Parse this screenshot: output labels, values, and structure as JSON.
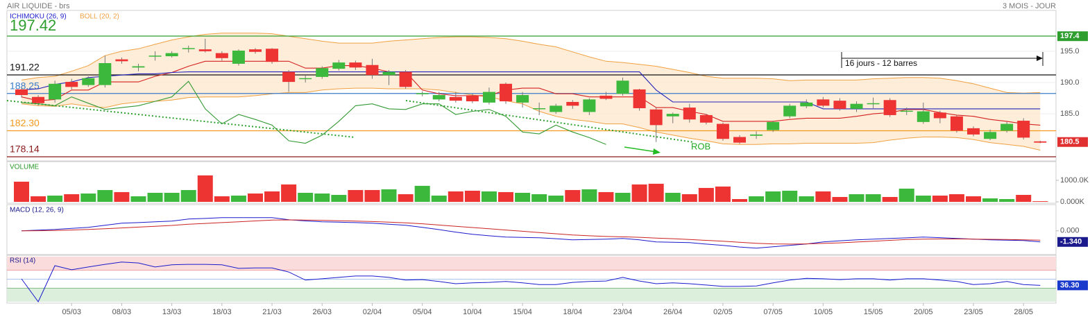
{
  "header": {
    "title": "AIR LIQUIDE - brs",
    "period": "3 MOIS - JOUR"
  },
  "annotations": {
    "rob": "ROB",
    "measure": "16 jours - 12 barres"
  },
  "chart_data": [
    {
      "type": "candlestick",
      "ylim": [
        177.7,
        201.3
      ],
      "yticks": [
        {
          "value": 185,
          "label": "185.0"
        },
        {
          "value": 190,
          "label": "190.0"
        },
        {
          "value": 195,
          "label": "195.0"
        }
      ],
      "grid": true,
      "up_color": "#3cb83c",
      "down_color": "#ee3333",
      "open": [
        188.9,
        187.7,
        187.3,
        190.1,
        189.6,
        189.6,
        193.7,
        192.4,
        194.2,
        194.2,
        195.4,
        195.3,
        194.7,
        193.0,
        195.3,
        195.4,
        191.7,
        190.6,
        190.9,
        192.2,
        193.2,
        192.8,
        191.2,
        191.7,
        188.2,
        187.3,
        187.7,
        187.9,
        186.8,
        189.8,
        186.8,
        185.8,
        185.3,
        186.9,
        185.3,
        187.9,
        188.2,
        188.9,
        185.7,
        184.6,
        186.0,
        184.8,
        183.4,
        181.3,
        181.5,
        182.4,
        184.6,
        186.2,
        187.3,
        187.1,
        185.8,
        186.6,
        187.2,
        185.4,
        183.7,
        185.2,
        184.6,
        182.7,
        181.0,
        182.3,
        183.9,
        180.6
      ],
      "high": [
        189.2,
        188.0,
        190.3,
        190.6,
        191.0,
        194.3,
        194.0,
        193.0,
        195.0,
        195.0,
        195.9,
        197.0,
        195.0,
        195.3,
        195.5,
        195.5,
        192.0,
        191.2,
        192.6,
        193.6,
        193.5,
        193.8,
        192.0,
        192.0,
        188.6,
        188.5,
        188.5,
        188.2,
        189.2,
        190.0,
        188.5,
        186.8,
        186.6,
        187.2,
        187.5,
        188.5,
        190.8,
        189.0,
        186.0,
        185.2,
        186.6,
        185.0,
        183.6,
        181.6,
        182.2,
        183.9,
        186.6,
        187.3,
        187.7,
        187.5,
        187.0,
        187.6,
        187.5,
        186.0,
        186.8,
        185.5,
        184.8,
        183.0,
        182.5,
        183.7,
        184.3,
        180.7
      ],
      "low": [
        187.6,
        186.3,
        186.8,
        188.9,
        189.3,
        189.2,
        193.0,
        191.8,
        193.5,
        194.0,
        194.8,
        194.8,
        193.5,
        192.7,
        194.6,
        193.0,
        188.5,
        190.0,
        190.6,
        191.9,
        192.0,
        190.6,
        189.6,
        189.0,
        187.8,
        187.0,
        186.8,
        186.7,
        186.5,
        186.6,
        186.0,
        184.8,
        185.0,
        185.8,
        184.8,
        187.2,
        187.9,
        185.5,
        180.5,
        183.5,
        183.6,
        183.3,
        180.7,
        180.2,
        181.0,
        182.1,
        184.3,
        185.9,
        186.0,
        185.5,
        185.3,
        185.9,
        184.5,
        184.8,
        183.4,
        183.5,
        182.0,
        181.4,
        180.8,
        182.0,
        180.9,
        180.3
      ],
      "close": [
        188.0,
        186.7,
        189.8,
        189.3,
        190.7,
        193.1,
        193.4,
        192.6,
        194.3,
        194.7,
        195.5,
        195.0,
        193.9,
        195.1,
        194.9,
        193.3,
        190.1,
        190.7,
        192.3,
        193.2,
        192.4,
        191.2,
        191.7,
        189.3,
        188.3,
        188.0,
        187.1,
        187.0,
        188.5,
        187.0,
        188.0,
        185.9,
        186.3,
        186.3,
        187.3,
        187.4,
        190.3,
        185.9,
        183.2,
        185.0,
        184.1,
        183.6,
        181.0,
        180.4,
        181.7,
        183.7,
        186.3,
        186.8,
        186.3,
        185.8,
        186.6,
        186.7,
        184.8,
        185.5,
        185.4,
        184.3,
        182.3,
        181.7,
        182.1,
        183.4,
        181.2,
        180.4
      ],
      "bollinger": {
        "name": "BOLL (20, 2)",
        "color": "#f0a040",
        "fill": "#fde8cc",
        "upper": [
          190.4,
          190.8,
          191.0,
          191.8,
          192.7,
          194.3,
          195.0,
          195.4,
          196.1,
          196.8,
          197.3,
          197.7,
          197.9,
          197.9,
          197.9,
          197.8,
          197.4,
          197.0,
          196.6,
          196.3,
          196.3,
          196.3,
          196.6,
          196.8,
          197.0,
          197.2,
          197.3,
          197.3,
          197.2,
          197.0,
          196.6,
          196.1,
          195.7,
          194.9,
          194.1,
          193.4,
          193.2,
          192.9,
          192.6,
          192.1,
          191.6,
          191.0,
          190.7,
          190.7,
          190.7,
          190.6,
          190.3,
          190.4,
          190.4,
          190.4,
          190.4,
          190.6,
          190.7,
          190.8,
          190.8,
          190.7,
          190.3,
          189.8,
          189.1,
          188.4,
          188.3,
          188.4
        ],
        "lower": [
          186.6,
          186.3,
          186.2,
          186.6,
          186.2,
          186.0,
          186.6,
          186.9,
          187.0,
          187.2,
          187.6,
          187.7,
          187.7,
          187.7,
          187.9,
          188.2,
          188.4,
          188.4,
          188.8,
          189.0,
          189.1,
          189.1,
          189.0,
          189.0,
          189.0,
          188.8,
          188.4,
          188.0,
          187.7,
          187.1,
          186.6,
          185.4,
          184.6,
          184.1,
          183.8,
          183.4,
          183.4,
          182.8,
          182.1,
          181.6,
          181.1,
          180.7,
          180.2,
          180.1,
          180.1,
          180.2,
          180.2,
          180.3,
          180.3,
          180.3,
          180.3,
          180.4,
          180.8,
          181.1,
          181.3,
          181.3,
          181.2,
          180.9,
          180.4,
          180.1,
          179.8,
          179.2
        ]
      },
      "ichimoku": {
        "name": "ICHIMOKU (26, 9)",
        "color": "#1c1ccc",
        "lines": [
          {
            "color": "#d42020",
            "values": [
              187.7,
              187.1,
              187.3,
              188.8,
              188.8,
              190.1,
              190.1,
              190.1,
              191.0,
              191.6,
              192.6,
              193.4,
              193.4,
              193.4,
              193.4,
              193.4,
              193.4,
              192.3,
              192.3,
              192.7,
              192.7,
              192.3,
              191.7,
              191.7,
              188.8,
              188.2,
              187.9,
              187.9,
              187.9,
              188.8,
              189.1,
              189.1,
              188.2,
              188.2,
              187.7,
              187.7,
              187.7,
              187.7,
              186.0,
              186.0,
              185.4,
              184.9,
              183.8,
              183.8,
              183.8,
              183.8,
              184.1,
              184.3,
              184.3,
              184.3,
              184.6,
              185.0,
              185.2,
              185.7,
              185.7,
              185.2,
              184.8,
              184.6,
              184.1,
              183.8,
              183.4,
              183.2
            ]
          },
          {
            "color": "#2222bb",
            "values": [
              188.8,
              189.0,
              189.7,
              190.1,
              190.8,
              191.0,
              191.2,
              191.4,
              191.4,
              191.6,
              191.7,
              191.7,
              191.7,
              191.7,
              191.7,
              191.7,
              191.7,
              191.7,
              191.7,
              191.7,
              191.7,
              191.7,
              191.7,
              191.7,
              191.7,
              191.7,
              191.7,
              191.7,
              191.7,
              191.7,
              191.7,
              191.7,
              191.7,
              191.7,
              191.7,
              191.7,
              191.7,
              191.7,
              188.8,
              186.9,
              186.9,
              186.9,
              186.9,
              186.9,
              186.9,
              186.9,
              186.9,
              186.9,
              185.8,
              185.8,
              185.8,
              185.8,
              185.8,
              185.8,
              185.8,
              185.8,
              185.8,
              185.8,
              185.8,
              185.8,
              185.8,
              185.8
            ]
          },
          {
            "color": "#339933",
            "values": [
              186.8,
              186.6,
              186.3,
              187.7,
              186.7,
              185.7,
              186.0,
              186.3,
              187.0,
              187.7,
              190.2,
              185.8,
              183.4,
              184.9,
              184.1,
              183.2,
              180.7,
              180.3,
              181.6,
              183.8,
              186.3,
              186.6,
              185.8,
              185.7,
              186.6,
              186.6,
              184.9,
              185.4,
              185.7,
              184.6,
              182.1,
              181.8,
              183.2,
              182.1,
              181.2,
              180.1,
              null,
              null,
              null,
              null,
              null,
              null,
              null,
              null,
              null,
              null,
              null,
              null,
              null,
              null,
              null,
              null,
              null,
              null,
              null,
              null,
              null,
              null,
              null,
              null,
              null,
              null
            ]
          }
        ]
      },
      "levels": [
        {
          "value": 197.42,
          "color": "#2e9e2e"
        },
        {
          "value": 191.22,
          "color": "#111111"
        },
        {
          "value": 188.25,
          "color": "#3a7bc8"
        },
        {
          "value": 182.3,
          "label": "182.30",
          "color": "#f39a1e"
        },
        {
          "value": 178.14,
          "color": "#8b1a1a"
        }
      ],
      "tags": [
        {
          "value": 197.4,
          "color": "#2e9e2e"
        },
        {
          "value": 180.5,
          "color": "#e03030"
        }
      ]
    },
    {
      "type": "bar",
      "title": "VOLUME",
      "ylim": [
        0,
        1800
      ],
      "yticks": [
        {
          "value": 0,
          "label": "0.000K"
        },
        {
          "value": 1000,
          "label": "1000.0K"
        }
      ],
      "up_color": "#3cb83c",
      "down_color": "#ee3333",
      "values": [
        935,
        258,
        290,
        355,
        387,
        548,
        452,
        258,
        419,
        419,
        548,
        1226,
        258,
        290,
        387,
        484,
        806,
        419,
        387,
        323,
        548,
        548,
        581,
        355,
        742,
        290,
        484,
        516,
        484,
        452,
        419,
        355,
        290,
        548,
        581,
        452,
        419,
        806,
        839,
        419,
        355,
        645,
        710,
        129,
        258,
        484,
        516,
        258,
        484,
        226,
        355,
        355,
        226,
        613,
        290,
        290,
        355,
        258,
        161,
        129,
        323,
        30
      ]
    },
    {
      "type": "line",
      "title": "MACD (12, 26, 9)",
      "ylim": [
        -2.7,
        3.0
      ],
      "yticks": [
        {
          "value": 0,
          "label": "0.000"
        }
      ],
      "series": [
        {
          "color": "#1a1acc",
          "values": [
            0,
            0.08,
            0.17,
            0.3,
            0.42,
            0.67,
            0.92,
            1.0,
            1.09,
            1.17,
            1.42,
            1.5,
            1.59,
            1.6,
            1.6,
            1.59,
            1.34,
            1.2,
            1.09,
            1.05,
            1.0,
            0.92,
            0.8,
            0.67,
            0.42,
            0.15,
            -0.15,
            -0.42,
            -0.6,
            -0.75,
            -0.8,
            -0.84,
            -0.95,
            -1.09,
            -1.05,
            -1.0,
            -0.92,
            -1.09,
            -1.34,
            -1.38,
            -1.42,
            -1.6,
            -1.76,
            -1.95,
            -2.09,
            -1.93,
            -1.75,
            -1.59,
            -1.34,
            -1.2,
            -1.09,
            -1.0,
            -0.92,
            -0.85,
            -0.75,
            -0.82,
            -0.92,
            -1.0,
            -1.09,
            -1.12,
            -1.17,
            -1.34
          ]
        },
        {
          "color": "#cc2222",
          "values": [
            0,
            0.02,
            0.05,
            0.1,
            0.17,
            0.25,
            0.35,
            0.45,
            0.55,
            0.65,
            0.8,
            0.9,
            1.0,
            1.1,
            1.2,
            1.3,
            1.32,
            1.3,
            1.27,
            1.22,
            1.18,
            1.12,
            1.05,
            0.97,
            0.85,
            0.7,
            0.55,
            0.4,
            0.25,
            0.1,
            -0.05,
            -0.2,
            -0.35,
            -0.5,
            -0.6,
            -0.68,
            -0.72,
            -0.78,
            -0.87,
            -0.95,
            -1.05,
            -1.15,
            -1.25,
            -1.38,
            -1.5,
            -1.58,
            -1.6,
            -1.58,
            -1.52,
            -1.45,
            -1.35,
            -1.25,
            -1.15,
            -1.05,
            -1.0,
            -0.98,
            -0.98,
            -1.0,
            -1.02,
            -1.05,
            -1.08,
            -1.12
          ]
        }
      ],
      "tags": [
        {
          "value": -1.34,
          "label": "-1.340",
          "color": "#1a1a8c"
        }
      ]
    },
    {
      "type": "line",
      "title": "RSI (14)",
      "ylim": [
        0,
        100
      ],
      "bands": [
        {
          "from": 70,
          "to": 100,
          "color": "#fbdcdc",
          "edge": "#ee8888"
        },
        {
          "from": 0,
          "to": 30,
          "color": "#dcefdc",
          "edge": "#66aa66"
        }
      ],
      "midline": 50,
      "series": [
        {
          "color": "#1a1acc",
          "values": [
            50.8,
            0,
            80,
            71,
            77,
            83,
            88,
            86,
            77,
            82,
            83,
            83,
            82,
            74,
            75,
            75,
            66,
            48,
            51,
            54,
            57,
            57,
            54,
            48,
            49,
            45,
            40,
            42,
            43,
            45,
            42,
            38,
            38,
            43,
            45,
            46,
            54,
            46,
            40,
            42,
            40,
            37,
            34,
            34,
            35,
            42,
            48,
            52,
            51,
            49,
            51,
            51,
            48,
            51,
            51,
            48,
            45,
            38,
            40,
            45,
            38,
            36.3
          ]
        }
      ],
      "tags": [
        {
          "value": 36.3,
          "label": "36.30",
          "color": "#1a3acc"
        }
      ],
      "categories": [
        null,
        null,
        null,
        "05/03",
        null,
        null,
        "08/03",
        null,
        null,
        "13/03",
        null,
        null,
        "18/03",
        null,
        null,
        "21/03",
        null,
        null,
        "26/03",
        null,
        null,
        "02/04",
        null,
        null,
        "05/04",
        null,
        null,
        "10/04",
        null,
        null,
        "15/04",
        null,
        null,
        "18/04",
        null,
        null,
        "23/04",
        null,
        null,
        "26/04",
        null,
        null,
        "02/05",
        null,
        null,
        "07/05",
        null,
        null,
        "10/05",
        null,
        null,
        "15/05",
        null,
        null,
        "20/05",
        null,
        null,
        "23/05",
        null,
        null,
        "28/05",
        null
      ]
    }
  ]
}
